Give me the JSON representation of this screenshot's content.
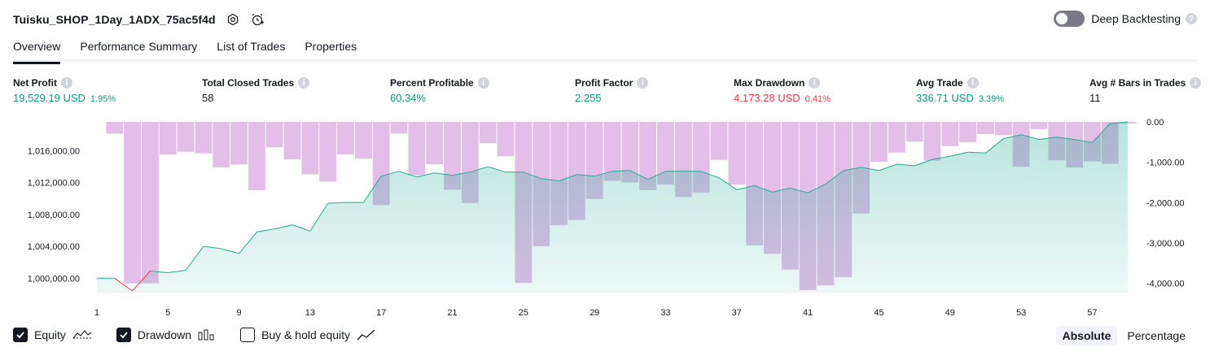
{
  "header": {
    "title": "Tuisku_SHOP_1Day_1ADX_75ac5f4d",
    "deep_backtesting_label": "Deep Backtesting"
  },
  "tabs": [
    {
      "label": "Overview",
      "active": true
    },
    {
      "label": "Performance Summary",
      "active": false
    },
    {
      "label": "List of Trades",
      "active": false
    },
    {
      "label": "Properties",
      "active": false
    }
  ],
  "metrics": {
    "net_profit": {
      "label": "Net Profit",
      "value": "19,529.19 USD",
      "pct": "1.95%"
    },
    "total_closed_trades": {
      "label": "Total Closed Trades",
      "value": "58"
    },
    "percent_profitable": {
      "label": "Percent Profitable",
      "value": "60.34%"
    },
    "profit_factor": {
      "label": "Profit Factor",
      "value": "2.255"
    },
    "max_drawdown": {
      "label": "Max Drawdown",
      "value": "4,173.28 USD",
      "pct": "0.41%"
    },
    "avg_trade": {
      "label": "Avg Trade",
      "value": "336.71 USD",
      "pct": "3.39%"
    },
    "avg_bars": {
      "label": "Avg # Bars in Trades",
      "value": "11"
    }
  },
  "legend": {
    "equity_label": "Equity",
    "drawdown_label": "Drawdown",
    "buy_hold_label": "Buy & hold equity"
  },
  "modes": {
    "absolute": "Absolute",
    "percentage": "Percentage"
  },
  "colors": {
    "positive": "#089981",
    "negative": "#f23645",
    "equity_line": "#22ab94",
    "drawdown_bar": "#ce93d8"
  },
  "chart_data": {
    "type": "area",
    "x_ticks": [
      "1",
      "5",
      "9",
      "13",
      "17",
      "21",
      "25",
      "29",
      "33",
      "37",
      "41",
      "45",
      "49",
      "53",
      "57"
    ],
    "left_axis": {
      "ticks": [
        "1,016,000.00",
        "1,012,000.00",
        "1,008,000.00",
        "1,004,000.00",
        "1,000,000.00"
      ],
      "tick_values": [
        1016000,
        1012000,
        1008000,
        1004000,
        1000000
      ],
      "ylim": [
        998200,
        1019600
      ]
    },
    "right_axis": {
      "ticks": [
        "0.00",
        "-1,000.00",
        "-2,000.00",
        "-3,000.00",
        "-4,000.00"
      ],
      "tick_values": [
        0,
        -1000,
        -2000,
        -3000,
        -4000
      ],
      "ylim": [
        -4230,
        0
      ]
    },
    "series": [
      {
        "name": "Equity",
        "x": [
          1,
          2,
          3,
          4,
          5,
          6,
          7,
          8,
          9,
          10,
          11,
          12,
          13,
          14,
          15,
          16,
          17,
          18,
          19,
          20,
          21,
          22,
          23,
          24,
          25,
          26,
          27,
          28,
          29,
          30,
          31,
          32,
          33,
          34,
          35,
          36,
          37,
          38,
          39,
          40,
          41,
          42,
          43,
          44,
          45,
          46,
          47,
          48,
          49,
          50,
          51,
          52,
          53,
          54,
          55,
          56,
          57,
          58,
          59
        ],
        "values": [
          1000000,
          1000000,
          998400,
          1000900,
          1000700,
          1001000,
          1004000,
          1003700,
          1003100,
          1005800,
          1006200,
          1006700,
          1005900,
          1009400,
          1009500,
          1009500,
          1012800,
          1013400,
          1012700,
          1013200,
          1012900,
          1013300,
          1014000,
          1013300,
          1013300,
          1012500,
          1012200,
          1013000,
          1012800,
          1013400,
          1013500,
          1012400,
          1013400,
          1013400,
          1013400,
          1012600,
          1011100,
          1011600,
          1010800,
          1011300,
          1010700,
          1011800,
          1013500,
          1013900,
          1013500,
          1014300,
          1014100,
          1014900,
          1015300,
          1015800,
          1015700,
          1017500,
          1018000,
          1017400,
          1017700,
          1017400,
          1017000,
          1019400,
          1019600
        ]
      },
      {
        "name": "Drawdown",
        "x": [
          1,
          2,
          3,
          4,
          5,
          6,
          7,
          8,
          9,
          10,
          11,
          12,
          13,
          14,
          15,
          16,
          17,
          18,
          19,
          20,
          21,
          22,
          23,
          24,
          25,
          26,
          27,
          28,
          29,
          30,
          31,
          32,
          33,
          34,
          35,
          36,
          37,
          38,
          39,
          40,
          41,
          42,
          43,
          44,
          45,
          46,
          47,
          48,
          49,
          50,
          51,
          52,
          53,
          54,
          55,
          56,
          57,
          58,
          59
        ],
        "values": [
          0,
          -290,
          -4000,
          -4000,
          -810,
          -740,
          -780,
          -1130,
          -1060,
          -1690,
          -630,
          -930,
          -1300,
          -1480,
          -810,
          -910,
          -2060,
          -290,
          -1320,
          -1050,
          -1680,
          -2010,
          -530,
          -850,
          -3990,
          -3080,
          -2560,
          -2430,
          -1910,
          -1460,
          -1500,
          -1690,
          -1550,
          -1860,
          -1750,
          -940,
          -1550,
          -3060,
          -3270,
          -3660,
          -4170,
          -4050,
          -3850,
          -2270,
          -990,
          -760,
          -490,
          -960,
          -600,
          -500,
          -300,
          -330,
          -1110,
          -180,
          -950,
          -1130,
          -980,
          -1040,
          -40
        ]
      }
    ],
    "grid": false
  }
}
